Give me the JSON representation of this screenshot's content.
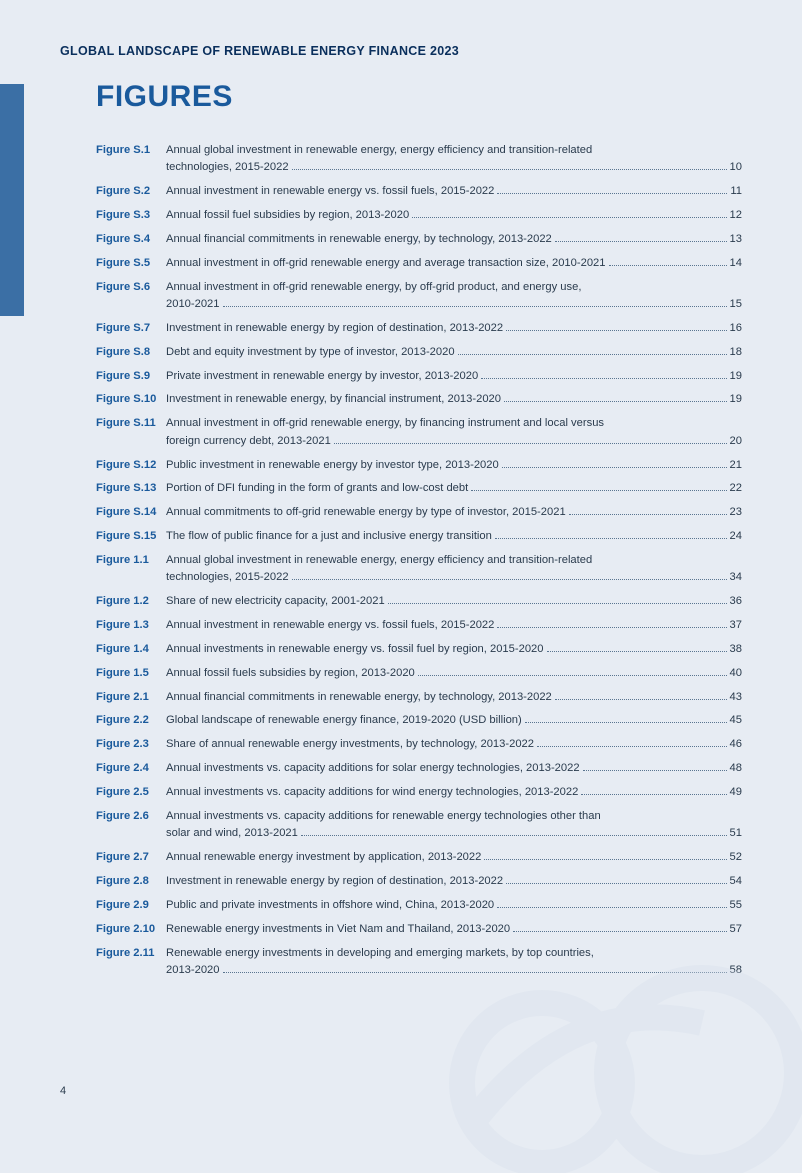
{
  "header": "GLOBAL LANDSCAPE OF RENEWABLE ENERGY FINANCE 2023",
  "title": "FIGURES",
  "page_number": "4",
  "colors": {
    "background": "#e7ecf3",
    "accent": "#3b6fa5",
    "title": "#1a5a9c",
    "label": "#1a5a9c",
    "body": "#2a3b4d",
    "leader": "#5a7590",
    "swirl": "#d6dfeb"
  },
  "entries": [
    {
      "label": "Figure S.1",
      "lines": [
        "Annual global investment in renewable energy, energy efficiency and transition-related",
        "technologies, 2015-2022"
      ],
      "page": "10"
    },
    {
      "label": "Figure S.2",
      "lines": [
        "Annual investment in renewable energy vs. fossil fuels, 2015-2022"
      ],
      "page": "11"
    },
    {
      "label": "Figure S.3",
      "lines": [
        "Annual fossil fuel subsidies by region, 2013-2020"
      ],
      "page": "12"
    },
    {
      "label": "Figure S.4",
      "lines": [
        "Annual financial commitments in renewable energy, by technology, 2013-2022"
      ],
      "page": "13"
    },
    {
      "label": "Figure S.5",
      "lines": [
        "Annual investment in off-grid renewable energy and average transaction size, 2010-2021"
      ],
      "page": "14"
    },
    {
      "label": "Figure S.6",
      "lines": [
        "Annual investment in off-grid renewable energy, by off-grid product, and energy use,",
        "2010-2021"
      ],
      "page": "15"
    },
    {
      "label": "Figure S.7",
      "lines": [
        "Investment in renewable energy by region of destination, 2013-2022"
      ],
      "page": "16"
    },
    {
      "label": "Figure S.8",
      "lines": [
        "Debt and equity investment by type of investor, 2013-2020"
      ],
      "page": "18"
    },
    {
      "label": "Figure S.9",
      "lines": [
        "Private investment in renewable energy by investor, 2013-2020"
      ],
      "page": "19"
    },
    {
      "label": "Figure S.10",
      "lines": [
        "Investment in renewable energy, by financial instrument, 2013-2020"
      ],
      "page": "19"
    },
    {
      "label": "Figure S.11",
      "lines": [
        "Annual investment in off-grid renewable energy, by financing instrument and local versus",
        "foreign currency debt, 2013-2021"
      ],
      "page": "20"
    },
    {
      "label": "Figure S.12",
      "lines": [
        "Public investment in renewable energy by investor type, 2013-2020"
      ],
      "page": "21"
    },
    {
      "label": "Figure S.13",
      "lines": [
        "Portion of DFI funding in the form of grants and low-cost debt"
      ],
      "page": "22"
    },
    {
      "label": "Figure S.14",
      "lines": [
        "Annual commitments to off-grid renewable energy by type of investor, 2015-2021"
      ],
      "page": "23"
    },
    {
      "label": "Figure S.15",
      "lines": [
        "The flow of public finance for a just and inclusive energy transition"
      ],
      "page": "24"
    },
    {
      "label": "Figure 1.1",
      "lines": [
        "Annual global investment in renewable energy, energy efficiency and transition-related",
        "technologies, 2015-2022"
      ],
      "page": "34"
    },
    {
      "label": "Figure 1.2",
      "lines": [
        "Share of new electricity capacity, 2001-2021"
      ],
      "page": "36"
    },
    {
      "label": "Figure 1.3",
      "lines": [
        "Annual investment in renewable energy vs. fossil fuels, 2015-2022"
      ],
      "page": "37"
    },
    {
      "label": "Figure 1.4",
      "lines": [
        "Annual investments in renewable energy vs. fossil fuel by region, 2015-2020"
      ],
      "page": "38"
    },
    {
      "label": "Figure 1.5",
      "lines": [
        "Annual fossil fuels subsidies by region, 2013-2020"
      ],
      "page": "40"
    },
    {
      "label": "Figure 2.1",
      "lines": [
        "Annual financial commitments in renewable energy, by technology, 2013-2022"
      ],
      "page": "43"
    },
    {
      "label": "Figure 2.2",
      "lines": [
        "Global landscape of renewable energy finance, 2019-2020 (USD billion)"
      ],
      "page": "45"
    },
    {
      "label": "Figure 2.3",
      "lines": [
        "Share of annual renewable energy investments, by technology, 2013-2022"
      ],
      "page": "46"
    },
    {
      "label": "Figure 2.4",
      "lines": [
        "Annual investments vs. capacity additions for solar energy technologies, 2013-2022"
      ],
      "page": "48"
    },
    {
      "label": "Figure 2.5",
      "lines": [
        "Annual investments vs. capacity additions for wind energy technologies, 2013-2022"
      ],
      "page": "49"
    },
    {
      "label": "Figure 2.6",
      "lines": [
        "Annual investments vs. capacity additions for renewable energy technologies other than",
        "solar and wind, 2013-2021"
      ],
      "page": "51"
    },
    {
      "label": "Figure 2.7",
      "lines": [
        "Annual renewable energy investment by application, 2013-2022"
      ],
      "page": "52"
    },
    {
      "label": "Figure 2.8",
      "lines": [
        "Investment in renewable energy by region of destination, 2013-2022"
      ],
      "page": "54"
    },
    {
      "label": "Figure 2.9",
      "lines": [
        "Public and private investments in offshore wind, China, 2013-2020"
      ],
      "page": "55"
    },
    {
      "label": "Figure 2.10",
      "lines": [
        "Renewable energy investments in Viet Nam and Thailand, 2013-2020"
      ],
      "page": "57"
    },
    {
      "label": "Figure 2.11",
      "lines": [
        "Renewable energy investments in developing and emerging markets, by top countries,",
        "2013-2020"
      ],
      "page": "58"
    }
  ]
}
